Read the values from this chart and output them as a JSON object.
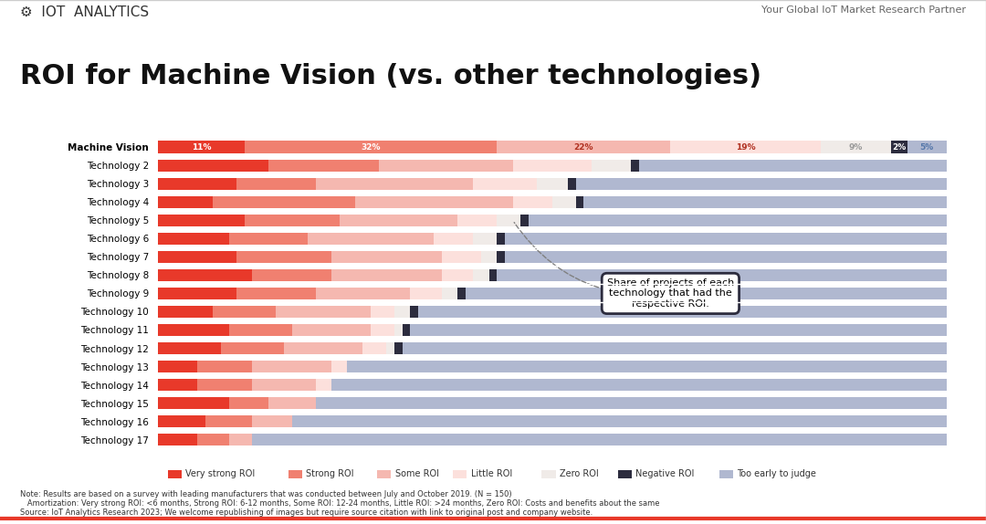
{
  "title": "ROI for Machine Vision (vs. other technologies)",
  "header_left": "IoT Analytics",
  "header_right": "Your Global IoT Market Research Partner",
  "categories": [
    "Machine Vision",
    "Technology 2",
    "Technology 3",
    "Technology 4",
    "Technology 5",
    "Technology 6",
    "Technology 7",
    "Technology 8",
    "Technology 9",
    "Technology 10",
    "Technology 11",
    "Technology 12",
    "Technology 13",
    "Technology 14",
    "Technology 15",
    "Technology 16",
    "Technology 17"
  ],
  "segments": {
    "Very strong ROI": {
      "color": "#e8392a",
      "values": [
        11,
        14,
        10,
        7,
        11,
        9,
        10,
        12,
        10,
        7,
        9,
        8,
        5,
        5,
        9,
        6,
        5
      ]
    },
    "Strong ROI": {
      "color": "#f08070",
      "values": [
        32,
        14,
        10,
        18,
        12,
        10,
        12,
        10,
        10,
        8,
        8,
        8,
        7,
        7,
        5,
        6,
        4
      ]
    },
    "Some ROI": {
      "color": "#f5b8b0",
      "values": [
        22,
        17,
        20,
        20,
        15,
        16,
        14,
        14,
        12,
        12,
        10,
        10,
        10,
        8,
        6,
        5,
        3
      ]
    },
    "Little ROI": {
      "color": "#fce0dc",
      "values": [
        19,
        10,
        8,
        5,
        5,
        5,
        5,
        4,
        4,
        3,
        3,
        3,
        2,
        2,
        0,
        0,
        0
      ]
    },
    "Zero ROI": {
      "color": "#f0ebe8",
      "values": [
        9,
        5,
        4,
        3,
        3,
        3,
        2,
        2,
        2,
        2,
        1,
        1,
        0,
        0,
        0,
        0,
        0
      ]
    },
    "Negative ROI": {
      "color": "#2c2c3e",
      "values": [
        2,
        1,
        1,
        1,
        1,
        1,
        1,
        1,
        1,
        1,
        1,
        1,
        0,
        0,
        0,
        0,
        0
      ]
    },
    "Too early to judge": {
      "color": "#b0b8d0",
      "values": [
        5,
        39,
        47,
        46,
        53,
        56,
        56,
        57,
        61,
        67,
        68,
        69,
        76,
        78,
        80,
        83,
        88
      ]
    }
  },
  "annotation_text": "Share of projects of each\ntechnology that had the\nrespective ROI.",
  "note_text": "Note: Results are based on a survey with leading manufacturers that was conducted between July and October 2019. (N = 150)\n   Amortization: Very strong ROI: <6 months, Strong ROI: 6-12 months, Some ROI: 12-24 months, Little ROI: >24 months, Zero ROI: Costs and benefits about the same\nSource: IoT Analytics Research 2023; We welcome republishing of images but require source citation with link to original post and company website.",
  "bg_color": "#ffffff",
  "bar_height": 0.65,
  "label_percentages": [
    "11%",
    "32%",
    "22%",
    "19%",
    "9%",
    "2%",
    "5%"
  ],
  "segment_names": [
    "Very strong ROI",
    "Strong ROI",
    "Some ROI",
    "Little ROI",
    "Zero ROI",
    "Negative ROI",
    "Too early to judge"
  ]
}
